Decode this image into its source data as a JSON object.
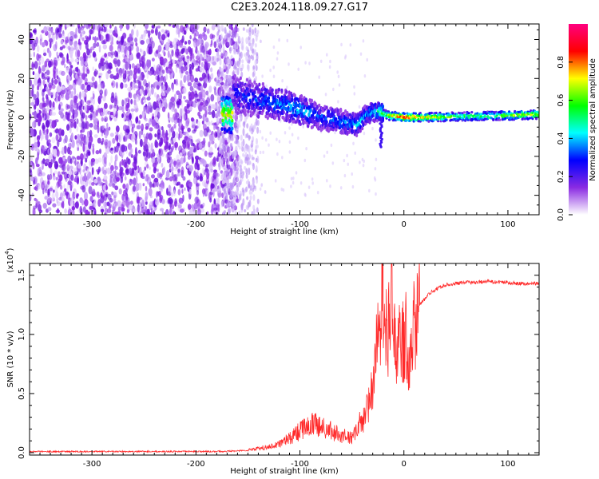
{
  "title": "C2E3.2024.118.09.27.G17",
  "chart_data": [
    {
      "type": "heatmap",
      "xlabel": "Height of straight line (km)",
      "ylabel": "Frequency (Hz)",
      "xlim": [
        -360,
        130
      ],
      "ylim": [
        -50,
        48
      ],
      "xticks": [
        "-300",
        "-200",
        "-100",
        "0",
        "100"
      ],
      "xtick_values": [
        -300,
        -200,
        -100,
        0,
        100
      ],
      "yticks": [
        "-40",
        "-20",
        "0",
        "20",
        "40"
      ],
      "ytick_values": [
        -40,
        -20,
        0,
        20,
        40
      ],
      "colorbar": {
        "label": "Normalized spectral amplitude",
        "range": [
          0,
          1
        ],
        "ticks": [
          "0.0",
          "0.2",
          "0.4",
          "0.6",
          "0.8"
        ],
        "tick_values": [
          0.0,
          0.2,
          0.4,
          0.6,
          0.8
        ],
        "colormap": [
          "#ffffff",
          "#8a2be2",
          "#0000ff",
          "#00ffff",
          "#00ff00",
          "#ffff00",
          "#ff0000",
          "#ff0080"
        ]
      },
      "ridge": [
        {
          "x": -165,
          "f": 12,
          "amp": 0.25
        },
        {
          "x": -140,
          "f": 9,
          "amp": 0.3
        },
        {
          "x": -120,
          "f": 7,
          "amp": 0.35
        },
        {
          "x": -100,
          "f": 4,
          "amp": 0.4
        },
        {
          "x": -80,
          "f": 0,
          "amp": 0.3
        },
        {
          "x": -60,
          "f": -2,
          "amp": 0.35
        },
        {
          "x": -45,
          "f": -4,
          "amp": 0.4
        },
        {
          "x": -35,
          "f": 2,
          "amp": 0.35
        },
        {
          "x": -25,
          "f": 3,
          "amp": 0.45
        },
        {
          "x": -15,
          "f": 1,
          "amp": 0.7
        },
        {
          "x": 0,
          "f": 0,
          "amp": 0.9
        },
        {
          "x": 20,
          "f": 0,
          "amp": 0.75
        },
        {
          "x": 60,
          "f": 0.5,
          "amp": 0.55
        },
        {
          "x": 100,
          "f": 1,
          "amp": 0.65
        },
        {
          "x": 130,
          "f": 1.5,
          "amp": 0.7
        }
      ]
    },
    {
      "type": "line",
      "xlabel": "Height of straight line (km)",
      "ylabel": "SNR (10 * v/v)",
      "yscale_label": "(x10",
      "yscale_exponent": "4",
      "xlim": [
        -360,
        130
      ],
      "ylim": [
        -0.02,
        1.6
      ],
      "xticks": [
        "-300",
        "-200",
        "-100",
        "0",
        "100"
      ],
      "xtick_values": [
        -300,
        -200,
        -100,
        0,
        100
      ],
      "yticks": [
        "0.0",
        "0.5",
        "1.0",
        "1.5"
      ],
      "ytick_values": [
        0.0,
        0.5,
        1.0,
        1.5
      ],
      "line_color": "#ff2a2a",
      "series": [
        {
          "x": [
            -360,
            -300,
            -250,
            -200,
            -180,
            -160,
            -150,
            -140,
            -130,
            -120,
            -110,
            -100,
            -90,
            -80,
            -70,
            -60,
            -50,
            -45,
            -40,
            -35,
            -30,
            -28,
            -25,
            -22,
            -20,
            -18,
            -15,
            -12,
            -10,
            -8,
            -5,
            -3,
            0,
            3,
            5,
            8,
            10,
            12,
            15,
            20,
            25,
            30,
            35,
            40,
            50,
            60,
            70,
            80,
            90,
            100,
            110,
            120,
            130
          ],
          "y": [
            0.01,
            0.01,
            0.01,
            0.01,
            0.01,
            0.015,
            0.02,
            0.03,
            0.04,
            0.06,
            0.1,
            0.15,
            0.2,
            0.18,
            0.15,
            0.12,
            0.1,
            0.15,
            0.25,
            0.4,
            0.55,
            0.75,
            1.0,
            1.3,
            1.5,
            1.2,
            1.05,
            1.25,
            1.1,
            0.9,
            1.0,
            0.95,
            1.0,
            1.05,
            0.7,
            1.1,
            1.15,
            1.2,
            1.25,
            1.3,
            1.35,
            1.38,
            1.4,
            1.42,
            1.43,
            1.44,
            1.44,
            1.45,
            1.44,
            1.44,
            1.43,
            1.43,
            1.43
          ]
        }
      ]
    }
  ]
}
